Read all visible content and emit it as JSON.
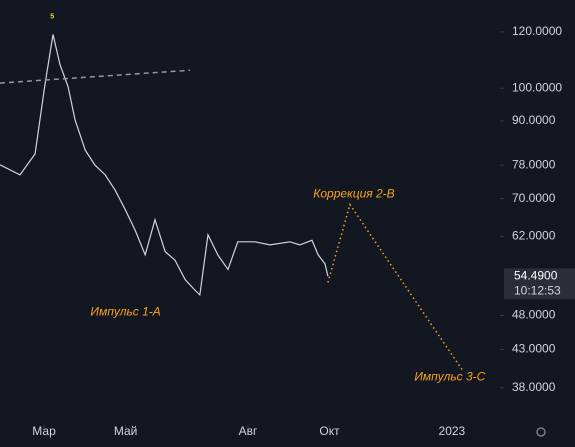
{
  "chart_data": {
    "type": "line",
    "log_scale": true,
    "xlim": [
      0.92,
      13.18
    ],
    "ylim": [
      33.7,
      133
    ],
    "xticks": [
      {
        "value": 2,
        "label": "Мар"
      },
      {
        "value": 4,
        "label": "Май"
      },
      {
        "value": 7,
        "label": "Авг"
      },
      {
        "value": 9,
        "label": "Окт"
      },
      {
        "value": 12,
        "label": "2023"
      }
    ],
    "yticks": [
      {
        "value": 120,
        "label": "120.0000"
      },
      {
        "value": 100,
        "label": "100.0000"
      },
      {
        "value": 90,
        "label": "90.0000"
      },
      {
        "value": 78,
        "label": "78.0000"
      },
      {
        "value": 70,
        "label": "70.0000"
      },
      {
        "value": 62,
        "label": "62.0000"
      },
      {
        "value": 48,
        "label": "48.0000"
      },
      {
        "value": 43,
        "label": "43.0000"
      },
      {
        "value": 38,
        "label": "38.0000"
      }
    ],
    "series": [
      {
        "color": "#d1d4dc",
        "x": [
          0.92,
          1.41,
          1.78,
          2.02,
          2.22,
          2.39,
          2.59,
          2.76,
          3.01,
          3.25,
          3.5,
          3.74,
          3.99,
          4.23,
          4.48,
          4.72,
          4.97,
          5.21,
          5.46,
          5.7,
          5.82,
          6.02,
          6.26,
          6.51,
          6.75,
          7.17,
          7.54,
          8.03,
          8.27,
          8.57,
          8.72,
          8.89,
          8.96
        ],
        "values": [
          78.1,
          75.6,
          80.9,
          101,
          119,
          108,
          100.5,
          90.3,
          81.9,
          78,
          75.6,
          72,
          67.6,
          63.3,
          58.4,
          65.4,
          59,
          57.4,
          53.9,
          52.1,
          51.3,
          62.3,
          58.4,
          55.7,
          60.9,
          60.9,
          60.3,
          60.9,
          60.3,
          61.2,
          58.4,
          56.7,
          54.49
        ]
      },
      {
        "color": "#f7a21b",
        "style": "dotted",
        "x": [
          8.96,
          9.5,
          12.25
        ],
        "values": [
          53.4,
          68.7,
          40.3
        ]
      },
      {
        "color": "#9598a1",
        "style": "dashed",
        "x": [
          0.92,
          5.58
        ],
        "values": [
          101.7,
          106
        ]
      }
    ],
    "annotations": [
      {
        "text": "5",
        "x": 2.2,
        "y": 126
      },
      {
        "text": "Коррекция 2-В",
        "x": 9.6,
        "y": 71
      },
      {
        "text": "Импульс 1-А",
        "x": 4.0,
        "y": 48.5
      },
      {
        "text": "Импульс 3-С",
        "x": 11.95,
        "y": 39.3
      }
    ],
    "last_price": {
      "value": 54.49,
      "label": "54.4900"
    },
    "countdown": "10:12:53"
  }
}
